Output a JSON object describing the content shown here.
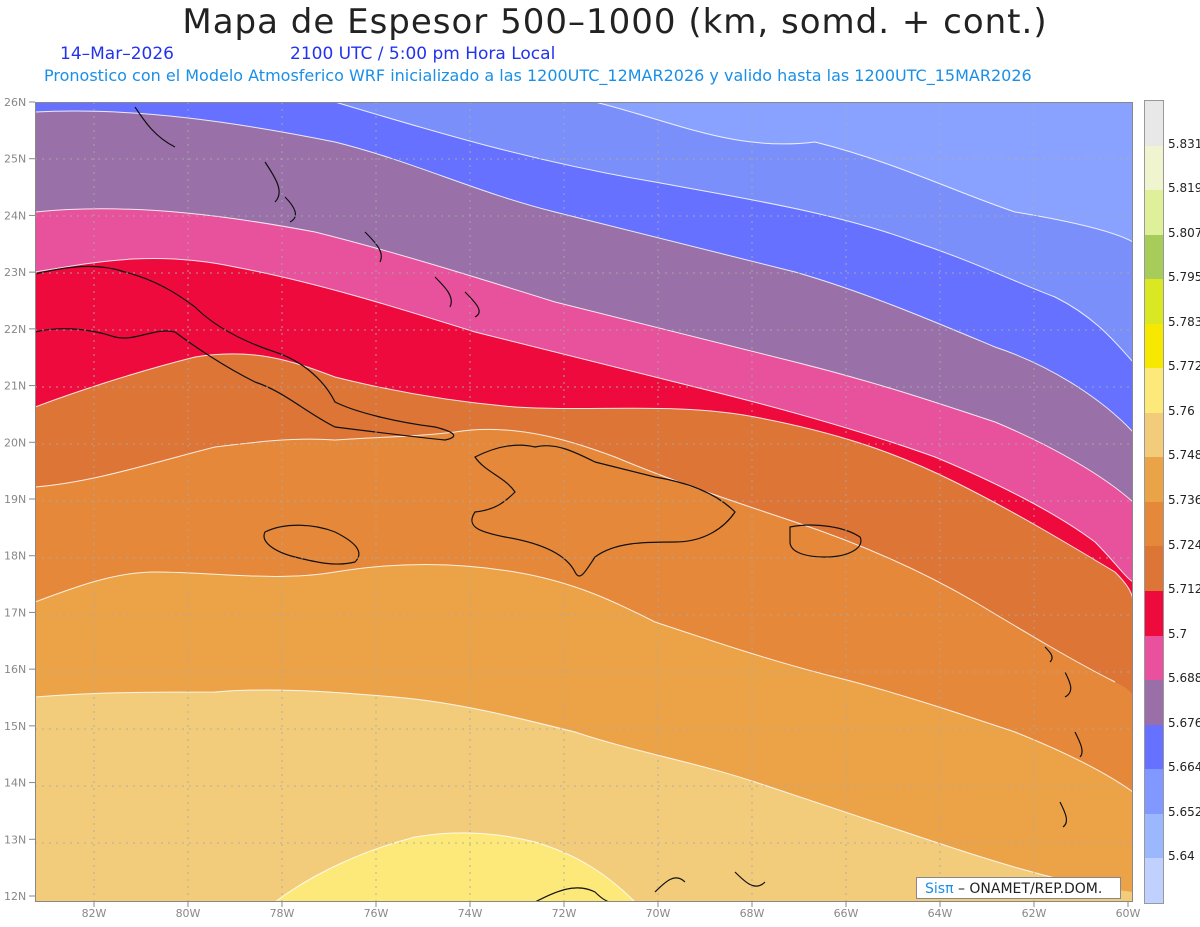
{
  "header": {
    "title": "Mapa de Espesor 500–1000 (km, somd. + cont.)",
    "date": "14–Mar–2026",
    "time": "2100 UTC / 5:00 pm Hora Local",
    "subtitle": "Pronostico con el Modelo Atmosferico WRF inicializado a las 1200UTC_12MAR2026 y valido hasta las  1200UTC_15MAR2026"
  },
  "credit": {
    "brand": "Sisπ",
    "text": "– ONAMET/REP.DOM."
  },
  "map": {
    "lat_labels": [
      "26N",
      "25N",
      "24N",
      "23N",
      "22N",
      "21N",
      "20N",
      "19N",
      "18N",
      "17N",
      "16N",
      "15N",
      "14N",
      "13N",
      "12N"
    ],
    "lon_labels": [
      "82W",
      "80W",
      "78W",
      "76W",
      "74W",
      "72W",
      "70W",
      "68W",
      "66W",
      "64W",
      "62W",
      "60W"
    ],
    "lat_range": [
      12,
      26
    ],
    "lon_range": [
      -83.2,
      -60
    ]
  },
  "legend": {
    "levels": [
      "5.831",
      "5.819",
      "5.807",
      "5.795",
      "5.783",
      "5.772",
      "5.76",
      "5.748",
      "5.736",
      "5.724",
      "5.712",
      "5.7",
      "5.688",
      "5.676",
      "5.664",
      "5.652",
      "5.64"
    ],
    "colors": [
      "#e8e8e8",
      "#f0f5d0",
      "#dff09a",
      "#a8cc5a",
      "#d9e822",
      "#f7e800",
      "#fde97a",
      "#f2cc7a",
      "#eba347",
      "#e6883a",
      "#dd7536",
      "#ee0a3c",
      "#e9509e",
      "#9a6fa8",
      "#6672ff",
      "#8098ff",
      "#9bb8ff",
      "#c0d0ff"
    ]
  }
}
